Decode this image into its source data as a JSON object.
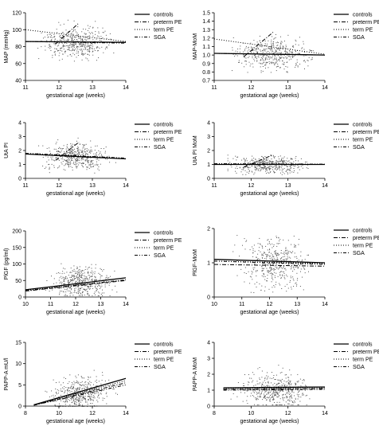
{
  "legend_lines": [
    "solid",
    "dash-dot",
    "dotted",
    "dash-dot-dot"
  ],
  "colors": {
    "ink": "#000000",
    "points": "#555555",
    "background": "#ffffff"
  },
  "chart_data": [
    {
      "type": "scatter",
      "title": "",
      "xlabel": "gestational age (weeks)",
      "ylabel": "MAP (mmHg)",
      "xlim": [
        11,
        14
      ],
      "ylim": [
        40,
        120
      ],
      "x_ticks": [
        11,
        12,
        13,
        14
      ],
      "y_ticks": [
        40,
        60,
        80,
        100,
        120
      ],
      "x_tick_labels": [
        "11",
        "12",
        "13",
        "14"
      ],
      "y_tick_labels": [
        "40",
        "60",
        "80",
        "100",
        "120"
      ],
      "grid": false,
      "legend_position": "right",
      "legend": [
        "controls",
        "preterm PE",
        "term PE",
        "SGA"
      ],
      "series": [
        {
          "name": "controls",
          "x": [
            11,
            14
          ],
          "y": [
            86,
            85
          ]
        },
        {
          "name": "preterm PE",
          "x": [
            11.9,
            12.6
          ],
          "y": [
            83,
            108
          ]
        },
        {
          "name": "term PE",
          "x": [
            11,
            14
          ],
          "y": [
            100,
            86
          ]
        },
        {
          "name": "SGA",
          "x": [
            11,
            14
          ],
          "y": [
            86,
            84
          ]
        }
      ],
      "scatter": {
        "x_center": 12.5,
        "x_spread": 0.75,
        "y_center": 85,
        "y_spread": 9,
        "y_min": 60,
        "y_max": 118,
        "count": 420
      }
    },
    {
      "type": "scatter",
      "title": "",
      "xlabel": "gestational age (weeks)",
      "ylabel": "MAP-MoM",
      "xlim": [
        11,
        14
      ],
      "ylim": [
        0.7,
        1.5
      ],
      "x_ticks": [
        11,
        12,
        13,
        14
      ],
      "y_ticks": [
        0.7,
        0.8,
        0.9,
        1.0,
        1.1,
        1.2,
        1.3,
        1.4,
        1.5
      ],
      "x_tick_labels": [
        "11",
        "12",
        "13",
        "14"
      ],
      "y_tick_labels": [
        "0.7",
        "0.8",
        "0.9",
        "1.0",
        "1.1",
        "1.2",
        "1.3",
        "1.4",
        "1.5"
      ],
      "grid": false,
      "legend_position": "right",
      "legend": [
        "controls",
        "preterm PE",
        "term PE",
        "SGA"
      ],
      "series": [
        {
          "name": "controls",
          "x": [
            11,
            14
          ],
          "y": [
            1.02,
            1.0
          ]
        },
        {
          "name": "preterm PE",
          "x": [
            11.8,
            12.6
          ],
          "y": [
            0.98,
            1.27
          ]
        },
        {
          "name": "term PE",
          "x": [
            11,
            14
          ],
          "y": [
            1.19,
            1.01
          ]
        },
        {
          "name": "SGA",
          "x": [
            11,
            14
          ],
          "y": [
            1.02,
            1.0
          ]
        }
      ],
      "scatter": {
        "x_center": 12.5,
        "x_spread": 0.75,
        "y_center": 1.02,
        "y_spread": 0.09,
        "y_min": 0.8,
        "y_max": 1.4,
        "count": 420
      }
    },
    {
      "type": "scatter",
      "title": "",
      "xlabel": "gestational age (weeks)",
      "ylabel": "UtA PI",
      "xlim": [
        11,
        14
      ],
      "ylim": [
        0,
        4
      ],
      "x_ticks": [
        11,
        12,
        13,
        14
      ],
      "y_ticks": [
        0,
        1,
        2,
        3,
        4
      ],
      "x_tick_labels": [
        "11",
        "12",
        "13",
        "14"
      ],
      "y_tick_labels": [
        "0",
        "1",
        "2",
        "3",
        "4"
      ],
      "grid": false,
      "legend_position": "right",
      "legend": [
        "controls",
        "preterm PE",
        "term PE",
        "SGA"
      ],
      "series": [
        {
          "name": "controls",
          "x": [
            11,
            14
          ],
          "y": [
            1.75,
            1.4
          ]
        },
        {
          "name": "preterm PE",
          "x": [
            11.9,
            12.6
          ],
          "y": [
            1.3,
            2.6
          ]
        },
        {
          "name": "term PE",
          "x": [
            11,
            14
          ],
          "y": [
            1.75,
            1.45
          ]
        },
        {
          "name": "SGA",
          "x": [
            11,
            14
          ],
          "y": [
            1.8,
            1.45
          ]
        }
      ],
      "scatter": {
        "x_center": 12.5,
        "x_spread": 0.75,
        "y_center": 1.6,
        "y_spread": 0.45,
        "y_min": 0.4,
        "y_max": 3.4,
        "count": 420
      }
    },
    {
      "type": "scatter",
      "title": "",
      "xlabel": "gestational age (weeks)",
      "ylabel": "UtA PI MoM",
      "xlim": [
        11,
        14
      ],
      "ylim": [
        0,
        4
      ],
      "x_ticks": [
        11,
        12,
        13,
        14
      ],
      "y_ticks": [
        0,
        1,
        2,
        3,
        4
      ],
      "x_tick_labels": [
        "11",
        "12",
        "13",
        "14"
      ],
      "y_tick_labels": [
        "0",
        "1",
        "2",
        "3",
        "4"
      ],
      "grid": false,
      "legend_position": "right",
      "legend": [
        "controls",
        "preterm PE",
        "term PE",
        "SGA"
      ],
      "series": [
        {
          "name": "controls",
          "x": [
            11,
            14
          ],
          "y": [
            1.0,
            1.0
          ]
        },
        {
          "name": "preterm PE",
          "x": [
            11.8,
            12.6
          ],
          "y": [
            0.8,
            1.7
          ]
        },
        {
          "name": "term PE",
          "x": [
            11,
            14
          ],
          "y": [
            1.05,
            1.0
          ]
        },
        {
          "name": "SGA",
          "x": [
            11,
            14
          ],
          "y": [
            1.05,
            1.02
          ]
        }
      ],
      "scatter": {
        "x_center": 12.5,
        "x_spread": 0.75,
        "y_center": 1.0,
        "y_spread": 0.3,
        "y_min": 0.3,
        "y_max": 2.4,
        "count": 420
      }
    },
    {
      "type": "scatter",
      "title": "",
      "xlabel": "gestational age (weeks)",
      "ylabel": "PlGF (pg/ml)",
      "xlim": [
        10,
        14
      ],
      "ylim": [
        0,
        200
      ],
      "x_ticks": [
        10,
        11,
        12,
        13,
        14
      ],
      "y_ticks": [
        0,
        50,
        100,
        150,
        200
      ],
      "x_tick_labels": [
        "10",
        "11",
        "12",
        "13",
        "14"
      ],
      "y_tick_labels": [
        "0",
        "50",
        "100",
        "150",
        "200"
      ],
      "grid": false,
      "legend_position": "right",
      "legend": [
        "controls",
        "preterm PE",
        "term PE",
        "SGA"
      ],
      "series": [
        {
          "name": "controls",
          "x": [
            10,
            14
          ],
          "y": [
            22,
            58
          ]
        },
        {
          "name": "preterm PE",
          "x": [
            10,
            14
          ],
          "y": [
            18,
            50
          ]
        },
        {
          "name": "term PE",
          "x": [
            10,
            14
          ],
          "y": [
            20,
            52
          ]
        },
        {
          "name": "SGA",
          "x": [
            10,
            14
          ],
          "y": [
            19,
            52
          ]
        }
      ],
      "scatter": {
        "x_center": 12.2,
        "x_spread": 0.9,
        "y_center": 45,
        "y_spread": 22,
        "y_min": 5,
        "y_max": 185,
        "count": 420
      }
    },
    {
      "type": "scatter",
      "title": "",
      "xlabel": "gestational age (weeks)",
      "ylabel": "PlGF-MoM",
      "xlim": [
        10,
        14
      ],
      "ylim": [
        0,
        2
      ],
      "x_ticks": [
        10,
        11,
        12,
        13,
        14
      ],
      "y_ticks": [
        0,
        1,
        2
      ],
      "x_tick_labels": [
        "10",
        "11",
        "12",
        "13",
        "14"
      ],
      "y_tick_labels": [
        "0",
        "1",
        "2"
      ],
      "grid": false,
      "legend_position": "right",
      "legend": [
        "controls",
        "preterm PE",
        "term PE",
        "SGA"
      ],
      "series": [
        {
          "name": "controls",
          "x": [
            10,
            14
          ],
          "y": [
            1.1,
            1.0
          ]
        },
        {
          "name": "preterm PE",
          "x": [
            10,
            14
          ],
          "y": [
            0.95,
            0.9
          ]
        },
        {
          "name": "term PE",
          "x": [
            10,
            14
          ],
          "y": [
            1.05,
            0.98
          ]
        },
        {
          "name": "SGA",
          "x": [
            10,
            14
          ],
          "y": [
            1.05,
            0.95
          ]
        }
      ],
      "scatter": {
        "x_center": 12.2,
        "x_spread": 0.9,
        "y_center": 1.0,
        "y_spread": 0.35,
        "y_min": 0.1,
        "y_max": 2.7,
        "count": 420
      }
    },
    {
      "type": "scatter",
      "title": "",
      "xlabel": "gestational age (weeks)",
      "ylabel": "PAPP-A mU/l",
      "xlim": [
        8,
        14
      ],
      "ylim": [
        0,
        15
      ],
      "x_ticks": [
        8,
        10,
        12,
        14
      ],
      "y_ticks": [
        0,
        5,
        10,
        15
      ],
      "x_tick_labels": [
        "8",
        "10",
        "12",
        "14"
      ],
      "y_tick_labels": [
        "0",
        "5",
        "10",
        "15"
      ],
      "grid": false,
      "legend_position": "right",
      "legend": [
        "controls",
        "preterm PE",
        "term PE",
        "SGA"
      ],
      "series": [
        {
          "name": "controls",
          "x": [
            8.5,
            14
          ],
          "y": [
            0.3,
            6.5
          ]
        },
        {
          "name": "preterm PE",
          "x": [
            8.5,
            14
          ],
          "y": [
            0.2,
            5.5
          ]
        },
        {
          "name": "term PE",
          "x": [
            8.5,
            14
          ],
          "y": [
            0.3,
            6.0
          ]
        },
        {
          "name": "SGA",
          "x": [
            8.5,
            14
          ],
          "y": [
            0.2,
            5.0
          ]
        }
      ],
      "scatter": {
        "x_center": 11.2,
        "x_spread": 1.3,
        "y_center": 2.5,
        "y_spread": 2.0,
        "y_min": 0.05,
        "y_max": 14,
        "count": 420
      }
    },
    {
      "type": "scatter",
      "title": "",
      "xlabel": "gestational age (weeks)",
      "ylabel": "PAPP-A MoM",
      "xlim": [
        8,
        14
      ],
      "ylim": [
        0,
        4
      ],
      "x_ticks": [
        8,
        10,
        12,
        14
      ],
      "y_ticks": [
        0,
        1,
        2,
        3,
        4
      ],
      "x_tick_labels": [
        "8",
        "10",
        "12",
        "14"
      ],
      "y_tick_labels": [
        "0",
        "1",
        "2",
        "3",
        "4"
      ],
      "grid": false,
      "legend_position": "right",
      "legend": [
        "controls",
        "preterm PE",
        "term PE",
        "SGA"
      ],
      "series": [
        {
          "name": "controls",
          "x": [
            8.5,
            14
          ],
          "y": [
            1.15,
            1.2
          ]
        },
        {
          "name": "preterm PE",
          "x": [
            8.5,
            14
          ],
          "y": [
            1.05,
            1.1
          ]
        },
        {
          "name": "term PE",
          "x": [
            8.5,
            14
          ],
          "y": [
            1.1,
            1.15
          ]
        },
        {
          "name": "SGA",
          "x": [
            8.5,
            14
          ],
          "y": [
            1.0,
            1.05
          ]
        }
      ],
      "scatter": {
        "x_center": 11.2,
        "x_spread": 1.3,
        "y_center": 1.0,
        "y_spread": 0.55,
        "y_min": 0.1,
        "y_max": 3.8,
        "count": 420
      }
    }
  ]
}
